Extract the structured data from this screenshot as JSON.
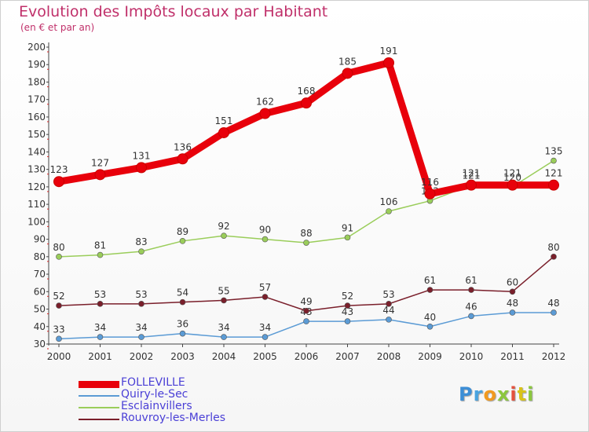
{
  "title": "Evolution des Impôts locaux par Habitant",
  "subtitle": "(en € et par an)",
  "logo": {
    "letters": [
      "P",
      "r",
      "o",
      "x",
      "i",
      "t",
      "i"
    ],
    "colors": [
      "#3c8ed6",
      "#4aa3df",
      "#f19a1f",
      "#8bc73e",
      "#e5513d",
      "#d9c319",
      "#8bc73e"
    ]
  },
  "chart_data": {
    "type": "line",
    "title": "Evolution des Impôts locaux par Habitant",
    "subtitle": "(en € et par an)",
    "categories": [
      "2000",
      "2001",
      "2002",
      "2003",
      "2004",
      "2005",
      "2006",
      "2007",
      "2008",
      "2009",
      "2010",
      "2011",
      "2012"
    ],
    "ylim": [
      30,
      200
    ],
    "yticks": [
      "30",
      "40",
      "50",
      "60",
      "70",
      "80",
      "90",
      "100",
      "110",
      "120",
      "130",
      "140",
      "150",
      "160",
      "170",
      "180",
      "190",
      "200"
    ],
    "grid": false,
    "series": [
      {
        "name": "FOLLEVILLE",
        "color": "#e8000b",
        "values": [
          123,
          127,
          131,
          136,
          151,
          162,
          168,
          185,
          191,
          116,
          121,
          121,
          121
        ],
        "labels": [
          "123",
          "127",
          "131",
          "136",
          "151",
          "162",
          "168",
          "185",
          "191",
          "116",
          "121",
          "121",
          "121"
        ]
      },
      {
        "name": "Quiry-le-Sec",
        "color": "#5b9bd5",
        "values": [
          33,
          34,
          34,
          36,
          34,
          34,
          43,
          43,
          44,
          40,
          46,
          48,
          48
        ],
        "labels": [
          "33",
          "34",
          "34",
          "36",
          "34",
          "34",
          "43",
          "43",
          "44",
          "40",
          "46",
          "48",
          "48"
        ]
      },
      {
        "name": "Esclainvillers",
        "color": "#9acd5a",
        "values": [
          80,
          81,
          83,
          89,
          92,
          90,
          88,
          91,
          106,
          112,
          121,
          120,
          135
        ],
        "labels": [
          "80",
          "81",
          "83",
          "89",
          "92",
          "90",
          "88",
          "91",
          "106",
          "112",
          "121",
          "120",
          "135"
        ]
      },
      {
        "name": "Rouvroy-les-Merles",
        "color": "#7a1f2b",
        "values": [
          52,
          53,
          53,
          54,
          55,
          57,
          49,
          52,
          53,
          61,
          61,
          60,
          80
        ],
        "labels": [
          "52",
          "53",
          "53",
          "54",
          "55",
          "57",
          "49",
          "52",
          "53",
          "61",
          "61",
          "60",
          "80"
        ]
      }
    ]
  }
}
